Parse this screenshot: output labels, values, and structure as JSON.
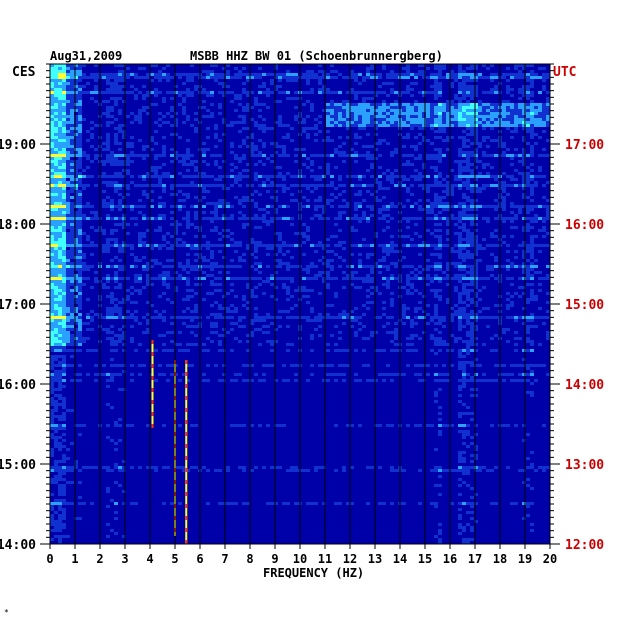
{
  "chart_data": {
    "type": "heatmap",
    "title_left": "Aug31,2009",
    "title_center": "MSBB HHZ BW 01 (Schoenbrunnergberg)",
    "left_tz_label": "CES",
    "right_tz_label": "UTC",
    "xlabel": "FREQUENCY (HZ)",
    "xlim": [
      0,
      20
    ],
    "x_ticks": [
      "0",
      "1",
      "2",
      "3",
      "4",
      "5",
      "6",
      "7",
      "8",
      "9",
      "10",
      "11",
      "12",
      "13",
      "14",
      "15",
      "16",
      "17",
      "18",
      "19",
      "20"
    ],
    "y_left_ticks": [
      {
        "label": "19:00",
        "hours_from_bottom": 5
      },
      {
        "label": "18:00",
        "hours_from_bottom": 4
      },
      {
        "label": "17:00",
        "hours_from_bottom": 3
      },
      {
        "label": "16:00",
        "hours_from_bottom": 2
      },
      {
        "label": "15:00",
        "hours_from_bottom": 1
      },
      {
        "label": "14:00",
        "hours_from_bottom": 0
      }
    ],
    "y_right_ticks": [
      {
        "label": "17:00",
        "hours_from_bottom": 5
      },
      {
        "label": "16:00",
        "hours_from_bottom": 4
      },
      {
        "label": "15:00",
        "hours_from_bottom": 3
      },
      {
        "label": "14:00",
        "hours_from_bottom": 2
      },
      {
        "label": "13:00",
        "hours_from_bottom": 1
      },
      {
        "label": "12:00",
        "hours_from_bottom": 0
      }
    ],
    "time_span_hours": 6,
    "colors": {
      "background": "#0000a8",
      "low": "#1030d0",
      "mid": "#2aa0ff",
      "high_cyan": "#40ffff",
      "yellow": "#ffff30",
      "red": "#ff3010",
      "grid": "#000000",
      "text": "#000000",
      "utc_text": "#cc0000"
    },
    "footer_mark": "*"
  }
}
